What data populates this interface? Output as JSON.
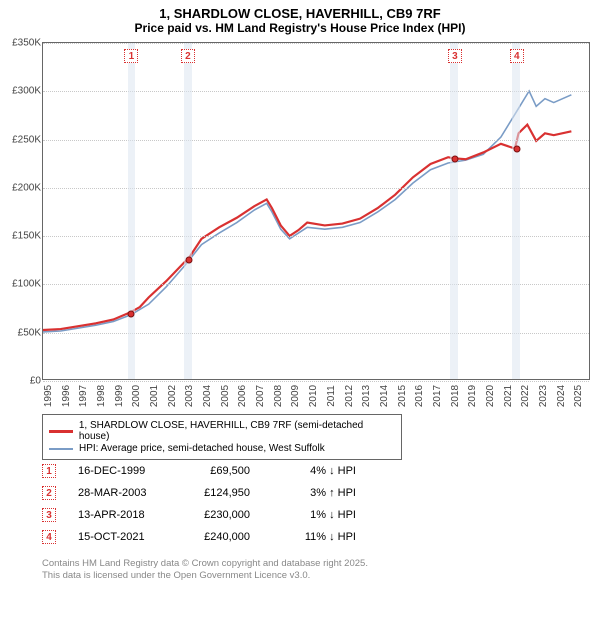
{
  "title": "1, SHARDLOW CLOSE, HAVERHILL, CB9 7RF",
  "subtitle": "Price paid vs. HM Land Registry's House Price Index (HPI)",
  "chart": {
    "background_color": "#ffffff",
    "grid_color": "#c8c8c8",
    "xmin": 1995,
    "xmax": 2026,
    "ymin": 0,
    "ymax": 350000,
    "yticks": [
      0,
      50000,
      100000,
      150000,
      200000,
      250000,
      300000,
      350000
    ],
    "ytick_labels": [
      "£0",
      "£50K",
      "£100K",
      "£150K",
      "£200K",
      "£250K",
      "£300K",
      "£350K"
    ],
    "xticks": [
      1995,
      1996,
      1997,
      1998,
      1999,
      2000,
      2001,
      2002,
      2003,
      2004,
      2005,
      2006,
      2007,
      2008,
      2009,
      2010,
      2011,
      2012,
      2013,
      2014,
      2015,
      2016,
      2017,
      2018,
      2019,
      2020,
      2021,
      2022,
      2023,
      2024,
      2025
    ],
    "vertical_bands": [
      {
        "x_start": 1999.8,
        "x_end": 2000.2
      },
      {
        "x_start": 2003.0,
        "x_end": 2003.45
      },
      {
        "x_start": 2018.05,
        "x_end": 2018.5
      },
      {
        "x_start": 2021.55,
        "x_end": 2022.0
      }
    ],
    "markers": [
      {
        "label": "1",
        "x": 2000.0,
        "y_top_offset": 6
      },
      {
        "label": "2",
        "x": 2003.2,
        "y_top_offset": 6
      },
      {
        "label": "3",
        "x": 2018.3,
        "y_top_offset": 6
      },
      {
        "label": "4",
        "x": 2021.8,
        "y_top_offset": 6
      }
    ],
    "marker_color": "#d93131",
    "series": [
      {
        "name": "price_paid",
        "label": "1, SHARDLOW CLOSE, HAVERHILL, CB9 7RF (semi-detached house)",
        "color": "#d93131",
        "width": 2.2,
        "points": [
          [
            1995,
            51000
          ],
          [
            1996,
            52000
          ],
          [
            1997,
            55000
          ],
          [
            1998,
            58000
          ],
          [
            1999,
            62000
          ],
          [
            1999.96,
            69500
          ],
          [
            2000.5,
            75000
          ],
          [
            2001,
            85000
          ],
          [
            2002,
            102000
          ],
          [
            2003,
            121000
          ],
          [
            2003.24,
            124950
          ],
          [
            2004,
            146000
          ],
          [
            2005,
            158000
          ],
          [
            2006,
            168000
          ],
          [
            2007,
            180000
          ],
          [
            2007.7,
            187000
          ],
          [
            2008,
            178000
          ],
          [
            2008.5,
            160000
          ],
          [
            2009,
            149000
          ],
          [
            2009.5,
            155000
          ],
          [
            2010,
            163000
          ],
          [
            2011,
            160000
          ],
          [
            2012,
            162000
          ],
          [
            2013,
            167000
          ],
          [
            2014,
            178000
          ],
          [
            2015,
            192000
          ],
          [
            2016,
            210000
          ],
          [
            2017,
            224000
          ],
          [
            2018,
            231000
          ],
          [
            2018.28,
            230000
          ],
          [
            2019,
            229000
          ],
          [
            2020,
            236000
          ],
          [
            2021,
            245000
          ],
          [
            2021.79,
            240000
          ],
          [
            2022,
            256000
          ],
          [
            2022.5,
            265000
          ],
          [
            2023,
            248000
          ],
          [
            2023.5,
            256000
          ],
          [
            2024,
            254000
          ],
          [
            2025,
            258000
          ]
        ]
      },
      {
        "name": "hpi",
        "label": "HPI: Average price, semi-detached house, West Suffolk",
        "color": "#7a9cc6",
        "width": 1.6,
        "points": [
          [
            1995,
            49000
          ],
          [
            1996,
            50000
          ],
          [
            1997,
            53000
          ],
          [
            1998,
            56000
          ],
          [
            1999,
            60000
          ],
          [
            2000,
            67000
          ],
          [
            2001,
            78000
          ],
          [
            2002,
            96000
          ],
          [
            2003,
            117000
          ],
          [
            2004,
            140000
          ],
          [
            2005,
            152000
          ],
          [
            2006,
            163000
          ],
          [
            2007,
            176000
          ],
          [
            2007.7,
            183000
          ],
          [
            2008,
            174000
          ],
          [
            2008.5,
            156000
          ],
          [
            2009,
            146000
          ],
          [
            2010,
            158000
          ],
          [
            2011,
            156000
          ],
          [
            2012,
            158000
          ],
          [
            2013,
            163000
          ],
          [
            2014,
            174000
          ],
          [
            2015,
            187000
          ],
          [
            2016,
            204000
          ],
          [
            2017,
            218000
          ],
          [
            2018,
            225000
          ],
          [
            2019,
            228000
          ],
          [
            2020,
            234000
          ],
          [
            2021,
            252000
          ],
          [
            2022,
            282000
          ],
          [
            2022.6,
            300000
          ],
          [
            2023,
            284000
          ],
          [
            2023.5,
            292000
          ],
          [
            2024,
            288000
          ],
          [
            2025,
            296000
          ]
        ]
      }
    ],
    "sale_points": [
      {
        "x": 1999.96,
        "y": 69500
      },
      {
        "x": 2003.24,
        "y": 124950
      },
      {
        "x": 2018.28,
        "y": 230000
      },
      {
        "x": 2021.79,
        "y": 240000
      }
    ]
  },
  "legend": {
    "items": [
      {
        "label": "1, SHARDLOW CLOSE, HAVERHILL, CB9 7RF (semi-detached house)",
        "color": "#d93131",
        "w": 3
      },
      {
        "label": "HPI: Average price, semi-detached house, West Suffolk",
        "color": "#7a9cc6",
        "w": 2
      }
    ]
  },
  "events": [
    {
      "n": "1",
      "date": "16-DEC-1999",
      "price": "£69,500",
      "delta": "4% ↓ HPI"
    },
    {
      "n": "2",
      "date": "28-MAR-2003",
      "price": "£124,950",
      "delta": "3% ↑ HPI"
    },
    {
      "n": "3",
      "date": "13-APR-2018",
      "price": "£230,000",
      "delta": "1% ↓ HPI"
    },
    {
      "n": "4",
      "date": "15-OCT-2021",
      "price": "£240,000",
      "delta": "11% ↓ HPI"
    }
  ],
  "footer_l1": "Contains HM Land Registry data © Crown copyright and database right 2025.",
  "footer_l2": "This data is licensed under the Open Government Licence v3.0."
}
